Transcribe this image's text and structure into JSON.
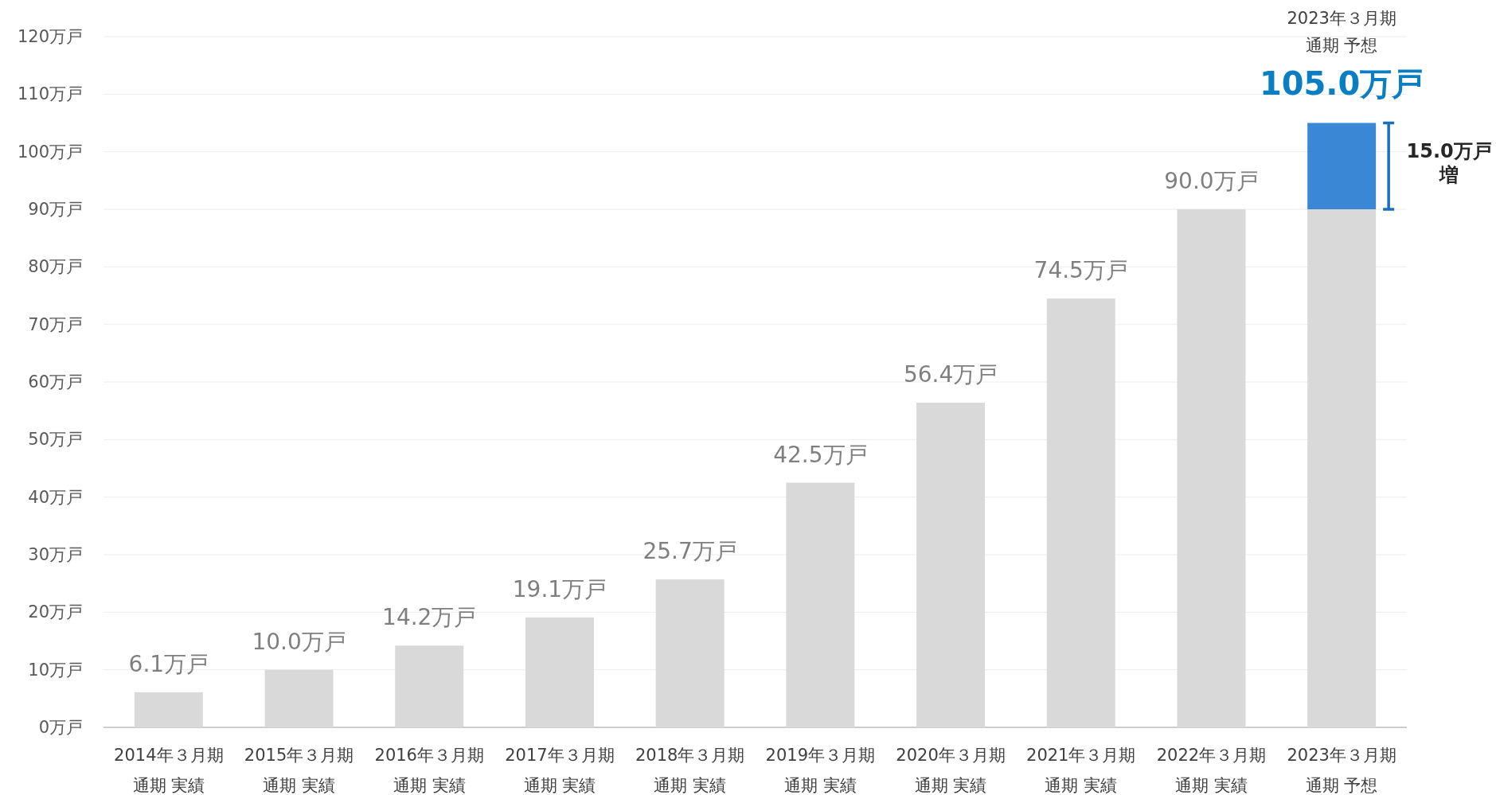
{
  "chart_data": {
    "type": "bar",
    "stacked": true,
    "grid": "y",
    "categories": [
      "2014年３月期通期 実績",
      "2015年３月期通期 実績",
      "2016年３月期通期 実績",
      "2017年３月期通期 実績",
      "2018年３月期通期 実績",
      "2019年３月期通期 実績",
      "2020年３月期通期 実績",
      "2021年３月期通期 実績",
      "2022年３月期通期 実績",
      "2023年３月期通期 予想"
    ],
    "series": [
      {
        "color": "#d9d9d9",
        "values": [
          6.1,
          10.0,
          14.2,
          19.1,
          25.7,
          42.5,
          56.4,
          74.5,
          90.0,
          90.0
        ],
        "value_labels": [
          "6.1万戸",
          "10.0万戸",
          "14.2万戸",
          "19.1万戸",
          "25.7万戸",
          "42.5万戸",
          "56.4万戸",
          "74.5万戸",
          "90.0万戸",
          null
        ]
      },
      {
        "color": "#3a87d6",
        "values": [
          null,
          null,
          null,
          null,
          null,
          null,
          null,
          null,
          null,
          15.0
        ]
      }
    ],
    "totals": [
      null,
      null,
      null,
      null,
      null,
      null,
      null,
      null,
      null,
      "105.0万戸"
    ],
    "ylim": [
      0,
      120
    ],
    "yticks": [
      {
        "value": 0,
        "label": "0万戸"
      },
      {
        "value": 10,
        "label": "10万戸"
      },
      {
        "value": 20,
        "label": "20万戸"
      },
      {
        "value": 30,
        "label": "30万戸"
      },
      {
        "value": 40,
        "label": "40万戸"
      },
      {
        "value": 50,
        "label": "50万戸"
      },
      {
        "value": 60,
        "label": "60万戸"
      },
      {
        "value": 70,
        "label": "70万戸"
      },
      {
        "value": 80,
        "label": "80万戸"
      },
      {
        "value": 90,
        "label": "90万戸"
      },
      {
        "value": 100,
        "label": "100万戸"
      },
      {
        "value": 110,
        "label": "110万戸"
      },
      {
        "value": 120,
        "label": "120万戸"
      }
    ],
    "annotations": [
      "2023年３月期通期 予想",
      "15.0万戸増"
    ]
  }
}
